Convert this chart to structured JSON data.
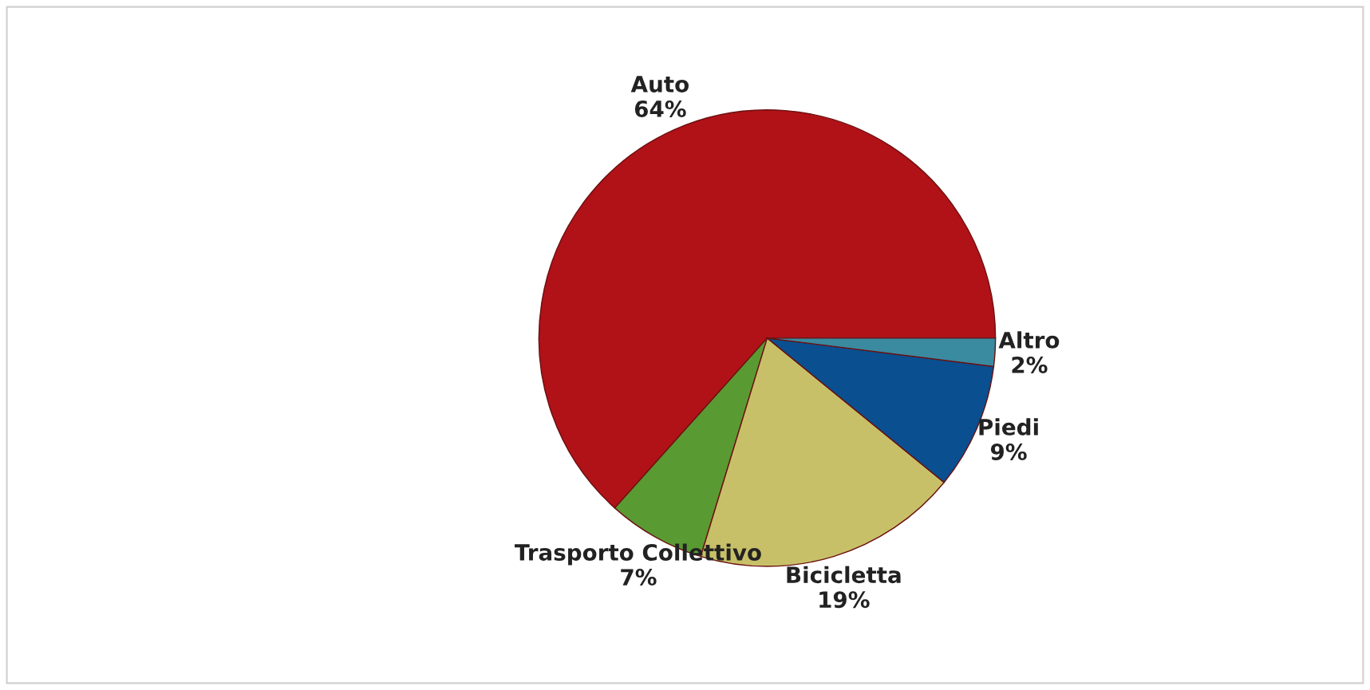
{
  "chart_data": {
    "type": "pie",
    "categories": [
      "Auto",
      "Trasporto Collettivo",
      "Bicicletta",
      "Piedi",
      "Altro"
    ],
    "values": [
      64,
      7,
      19,
      9,
      2
    ],
    "value_labels": [
      "64%",
      "7%",
      "19%",
      "9%",
      "2%"
    ],
    "colors": [
      "#b01218",
      "#5a9a32",
      "#c8c068",
      "#0a4f8f",
      "#3a8aa0"
    ],
    "legend": false
  }
}
